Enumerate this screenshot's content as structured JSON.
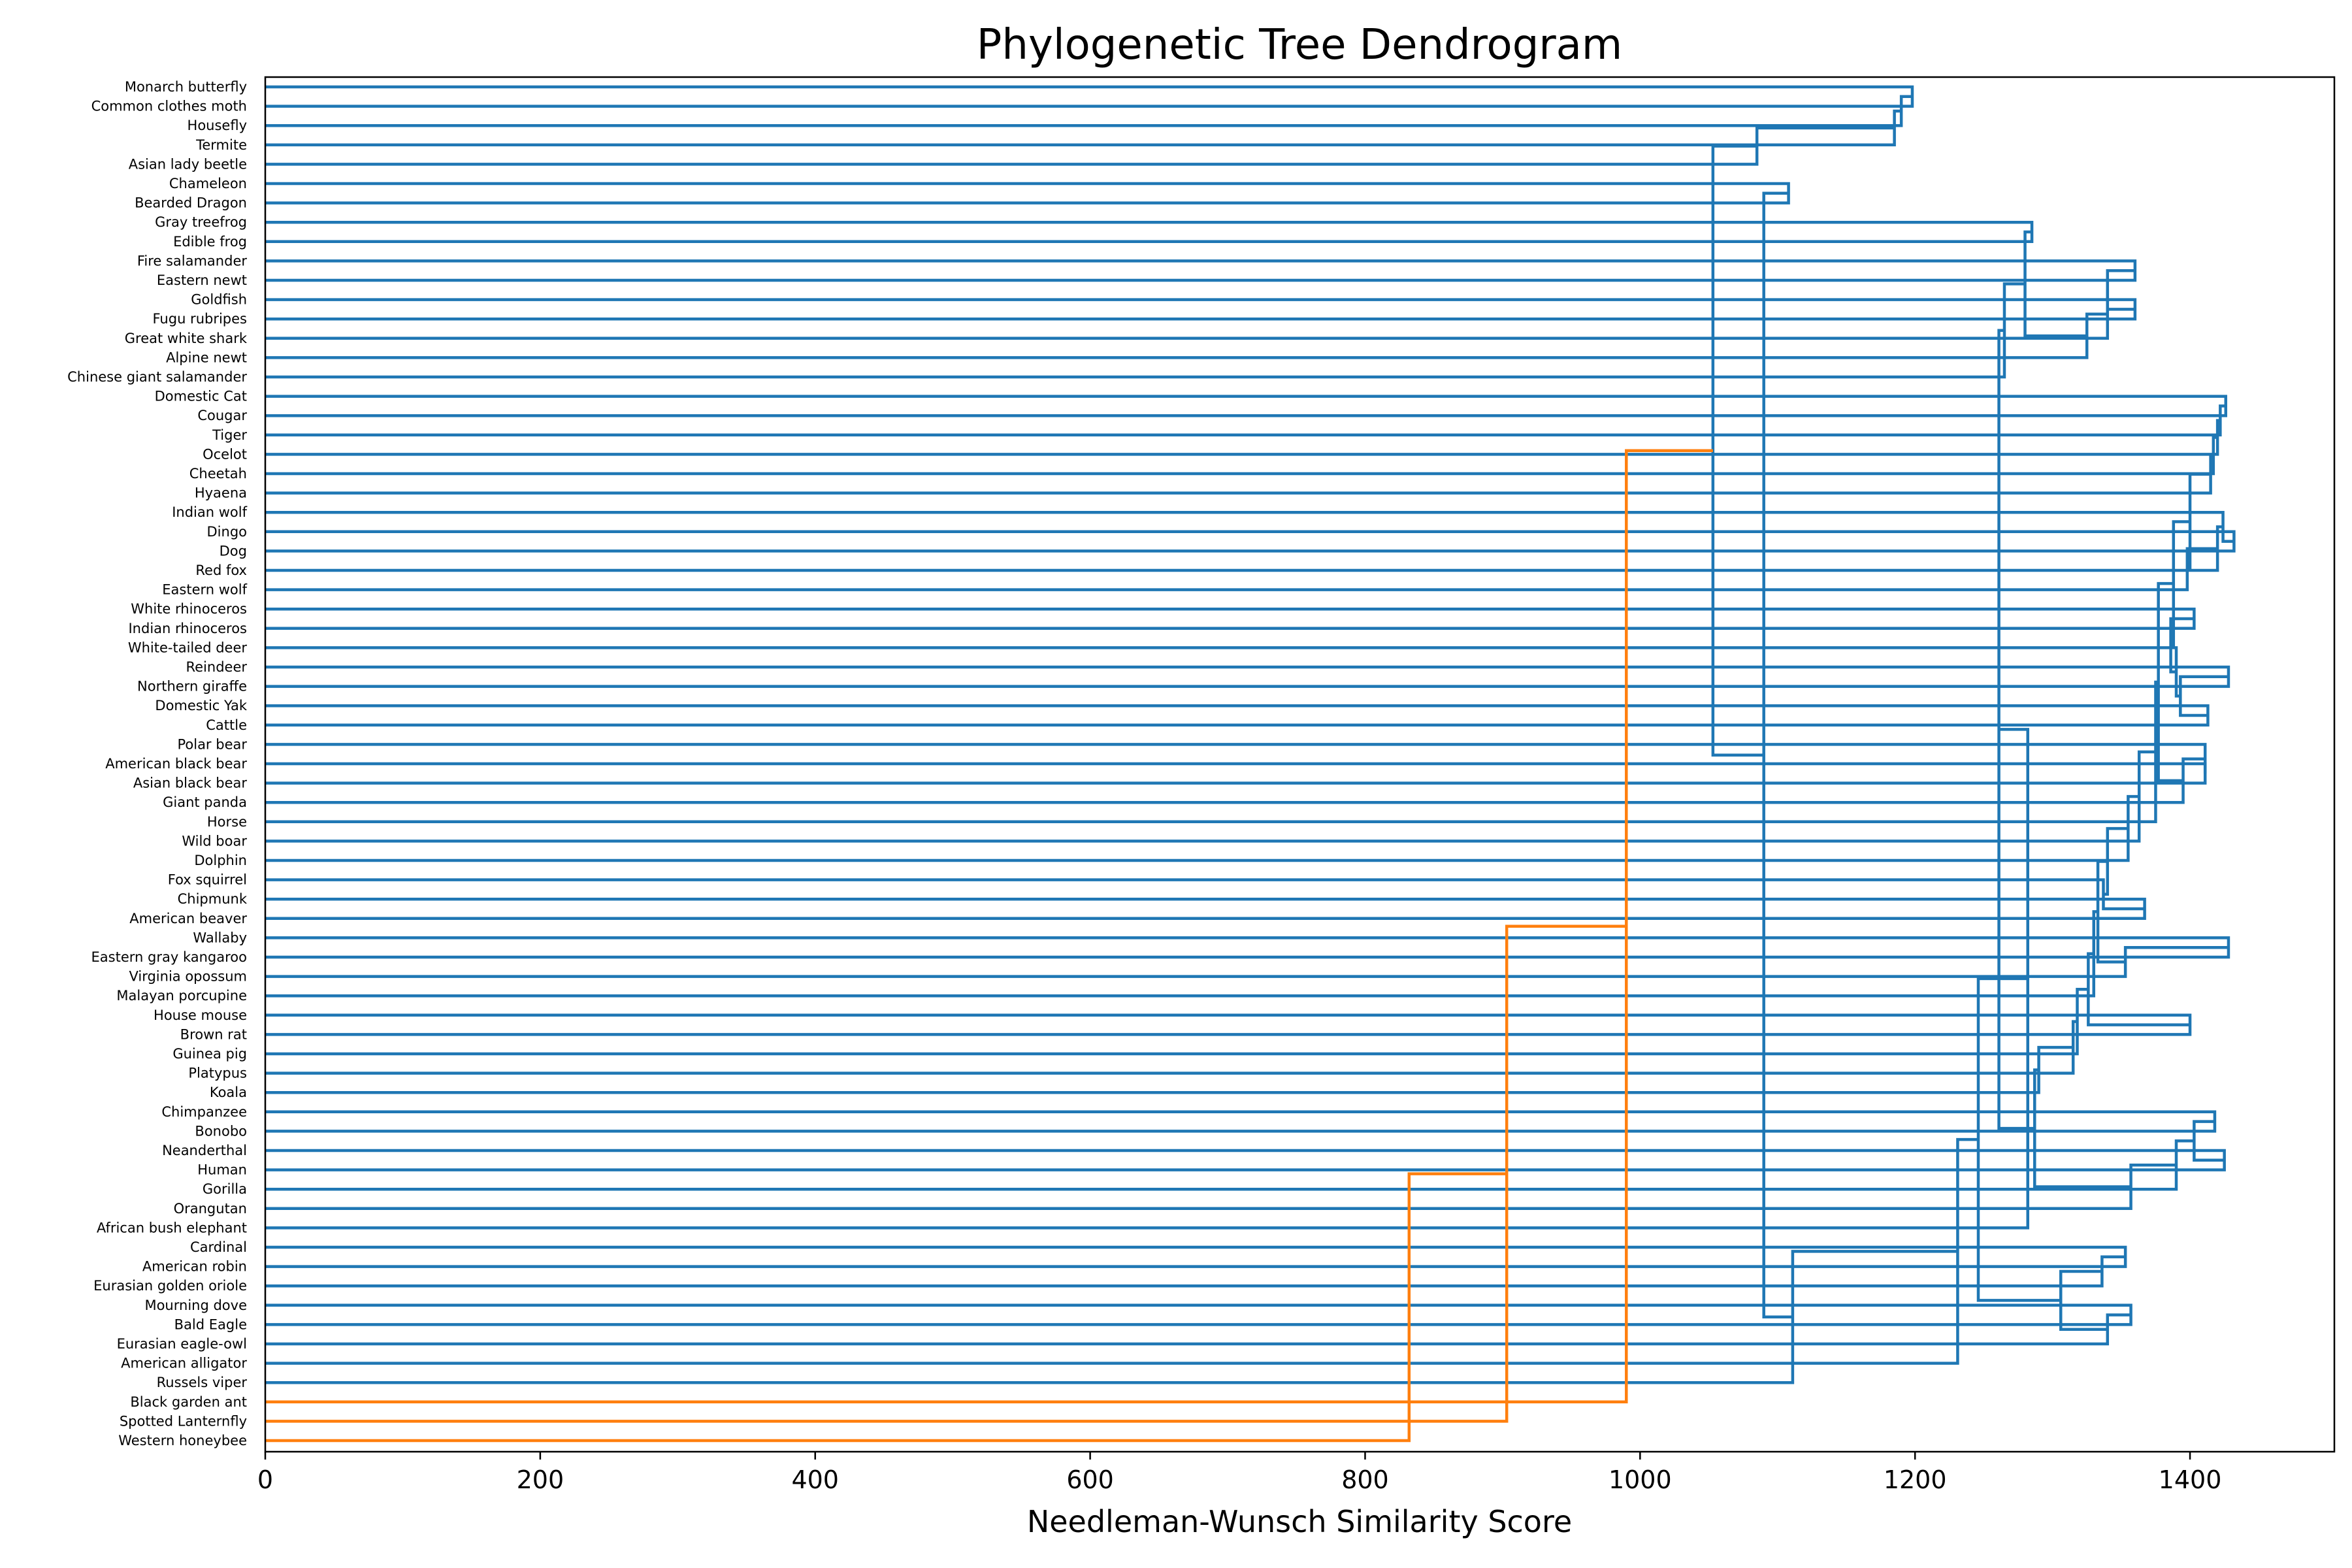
{
  "chart_data": {
    "type": "dendrogram",
    "title": "Phylogenetic Tree Dendrogram",
    "xlabel": "Needleman-Wunsch Similarity Score",
    "ylabel": "",
    "xlim": [
      0,
      1505
    ],
    "xticks": [
      0,
      200,
      400,
      600,
      800,
      1000,
      1200,
      1400
    ],
    "grid": false,
    "legend": "none",
    "colors": {
      "main": "#1f77b4",
      "outgroup": "#ff7f0e",
      "axis": "#000000"
    },
    "leaves": [
      "Monarch butterfly",
      "Common clothes moth",
      "Housefly",
      "Termite",
      "Asian lady beetle",
      "Chameleon",
      "Bearded Dragon",
      "Gray treefrog",
      "Edible frog",
      "Fire salamander",
      "Eastern newt",
      "Goldfish",
      "Fugu rubripes",
      "Great white shark",
      "Alpine newt",
      "Chinese giant salamander",
      "Domestic Cat",
      "Cougar",
      "Tiger",
      "Ocelot",
      "Cheetah",
      "Hyaena",
      "Indian wolf",
      "Dingo",
      "Dog",
      "Red fox",
      "Eastern wolf",
      "White rhinoceros",
      "Indian rhinoceros",
      "White-tailed deer",
      "Reindeer",
      "Northern giraffe",
      "Domestic Yak",
      "Cattle",
      "Polar bear",
      "American black bear",
      "Asian black bear",
      "Giant panda",
      "Horse",
      "Wild boar",
      "Dolphin",
      "Fox squirrel",
      "Chipmunk",
      "American beaver",
      "Wallaby",
      "Eastern gray kangaroo",
      "Virginia opossum",
      "Malayan porcupine",
      "House mouse",
      "Brown rat",
      "Guinea pig",
      "Platypus",
      "Koala",
      "Chimpanzee",
      "Bonobo",
      "Neanderthal",
      "Human",
      "Gorilla",
      "Orangutan",
      "African bush elephant",
      "Cardinal",
      "American robin",
      "Eurasian golden oriole",
      "Mourning dove",
      "Bald Eagle",
      "Eurasian eagle-owl",
      "American alligator",
      "Russels viper",
      "Black garden ant",
      "Spotted Lanternfly",
      "Western honeybee"
    ],
    "merges": [
      {
        "a": "L0",
        "b": "L1",
        "score": 1198
      },
      {
        "a": "L2",
        "b": "N0",
        "score": 1190
      },
      {
        "a": "L3",
        "b": "N1",
        "score": 1185
      },
      {
        "a": "L4",
        "b": "N2",
        "score": 1085
      },
      {
        "a": "L5",
        "b": "L6",
        "score": 1108
      },
      {
        "a": "L7",
        "b": "L8",
        "score": 1285
      },
      {
        "a": "L9",
        "b": "L10",
        "score": 1360
      },
      {
        "a": "L11",
        "b": "L12",
        "score": 1360
      },
      {
        "a": "N6",
        "b": "N7",
        "score": 1340
      },
      {
        "a": "L13",
        "b": "N8",
        "score": 1340
      },
      {
        "a": "L14",
        "b": "N9",
        "score": 1325
      },
      {
        "a": "N5",
        "b": "N10",
        "score": 1280
      },
      {
        "a": "L15",
        "b": "N11",
        "score": 1265
      },
      {
        "a": "L16",
        "b": "L17",
        "score": 1426
      },
      {
        "a": "L18",
        "b": "N13",
        "score": 1422
      },
      {
        "a": "L19",
        "b": "N14",
        "score": 1420
      },
      {
        "a": "L20",
        "b": "N15",
        "score": 1417
      },
      {
        "a": "L21",
        "b": "N16",
        "score": 1415
      },
      {
        "a": "L23",
        "b": "L24",
        "score": 1432
      },
      {
        "a": "L22",
        "b": "N18",
        "score": 1424
      },
      {
        "a": "L25",
        "b": "N19",
        "score": 1420
      },
      {
        "a": "L26",
        "b": "N20",
        "score": 1398
      },
      {
        "a": "N17",
        "b": "N21",
        "score": 1400
      },
      {
        "a": "L27",
        "b": "L28",
        "score": 1403
      },
      {
        "a": "L30",
        "b": "L31",
        "score": 1428
      },
      {
        "a": "L32",
        "b": "L33",
        "score": 1413
      },
      {
        "a": "N24",
        "b": "N25",
        "score": 1393
      },
      {
        "a": "L29",
        "b": "N26",
        "score": 1390
      },
      {
        "a": "N23",
        "b": "N27",
        "score": 1386
      },
      {
        "a": "N22",
        "b": "N28",
        "score": 1388
      },
      {
        "a": "L35",
        "b": "L36",
        "score": 1411
      },
      {
        "a": "L34",
        "b": "N30",
        "score": 1411
      },
      {
        "a": "L37",
        "b": "N31",
        "score": 1395
      },
      {
        "a": "N29",
        "b": "N32",
        "score": 1377
      },
      {
        "a": "L38",
        "b": "N33",
        "score": 1375
      },
      {
        "a": "L39",
        "b": "N34",
        "score": 1363
      },
      {
        "a": "L40",
        "b": "N35",
        "score": 1355
      },
      {
        "a": "L42",
        "b": "L43",
        "score": 1367
      },
      {
        "a": "L41",
        "b": "N37",
        "score": 1337
      },
      {
        "a": "N36",
        "b": "N38",
        "score": 1340
      },
      {
        "a": "L44",
        "b": "L45",
        "score": 1428
      },
      {
        "a": "L46",
        "b": "N40",
        "score": 1353
      },
      {
        "a": "N39",
        "b": "N41",
        "score": 1333
      },
      {
        "a": "L47",
        "b": "N42",
        "score": 1330
      },
      {
        "a": "L48",
        "b": "L49",
        "score": 1400
      },
      {
        "a": "N43",
        "b": "N44",
        "score": 1326
      },
      {
        "a": "L50",
        "b": "N45",
        "score": 1318
      },
      {
        "a": "L51",
        "b": "N46",
        "score": 1315
      },
      {
        "a": "N47",
        "b": "L52",
        "score": 1290
      },
      {
        "a": "L53",
        "b": "L54",
        "score": 1418
      },
      {
        "a": "L55",
        "b": "L56",
        "score": 1425
      },
      {
        "a": "N49",
        "b": "N50",
        "score": 1403
      },
      {
        "a": "L57",
        "b": "N51",
        "score": 1390
      },
      {
        "a": "L58",
        "b": "N52",
        "score": 1357
      },
      {
        "a": "N48",
        "b": "N53",
        "score": 1287
      },
      {
        "a": "N12",
        "b": "N54",
        "score": 1261
      },
      {
        "a": "N55",
        "b": "L59",
        "score": 1282
      },
      {
        "a": "L60",
        "b": "L61",
        "score": 1353
      },
      {
        "a": "L62",
        "b": "N57",
        "score": 1336
      },
      {
        "a": "L63",
        "b": "L64",
        "score": 1357
      },
      {
        "a": "N59",
        "b": "L65",
        "score": 1340
      },
      {
        "a": "N58",
        "b": "N60",
        "score": 1306
      },
      {
        "a": "N56",
        "b": "N61",
        "score": 1246
      },
      {
        "a": "N62",
        "b": "L66",
        "score": 1231
      },
      {
        "a": "N63",
        "b": "L67",
        "score": 1111
      },
      {
        "a": "N4",
        "b": "N64",
        "score": 1090
      },
      {
        "a": "N3",
        "b": "N65",
        "score": 1053
      },
      {
        "a": "N66",
        "b": "L68",
        "score": 990
      },
      {
        "a": "N67",
        "b": "L69",
        "score": 903
      },
      {
        "a": "N68",
        "b": "L70",
        "score": 832
      }
    ],
    "outgroup_merges_from": 67
  }
}
